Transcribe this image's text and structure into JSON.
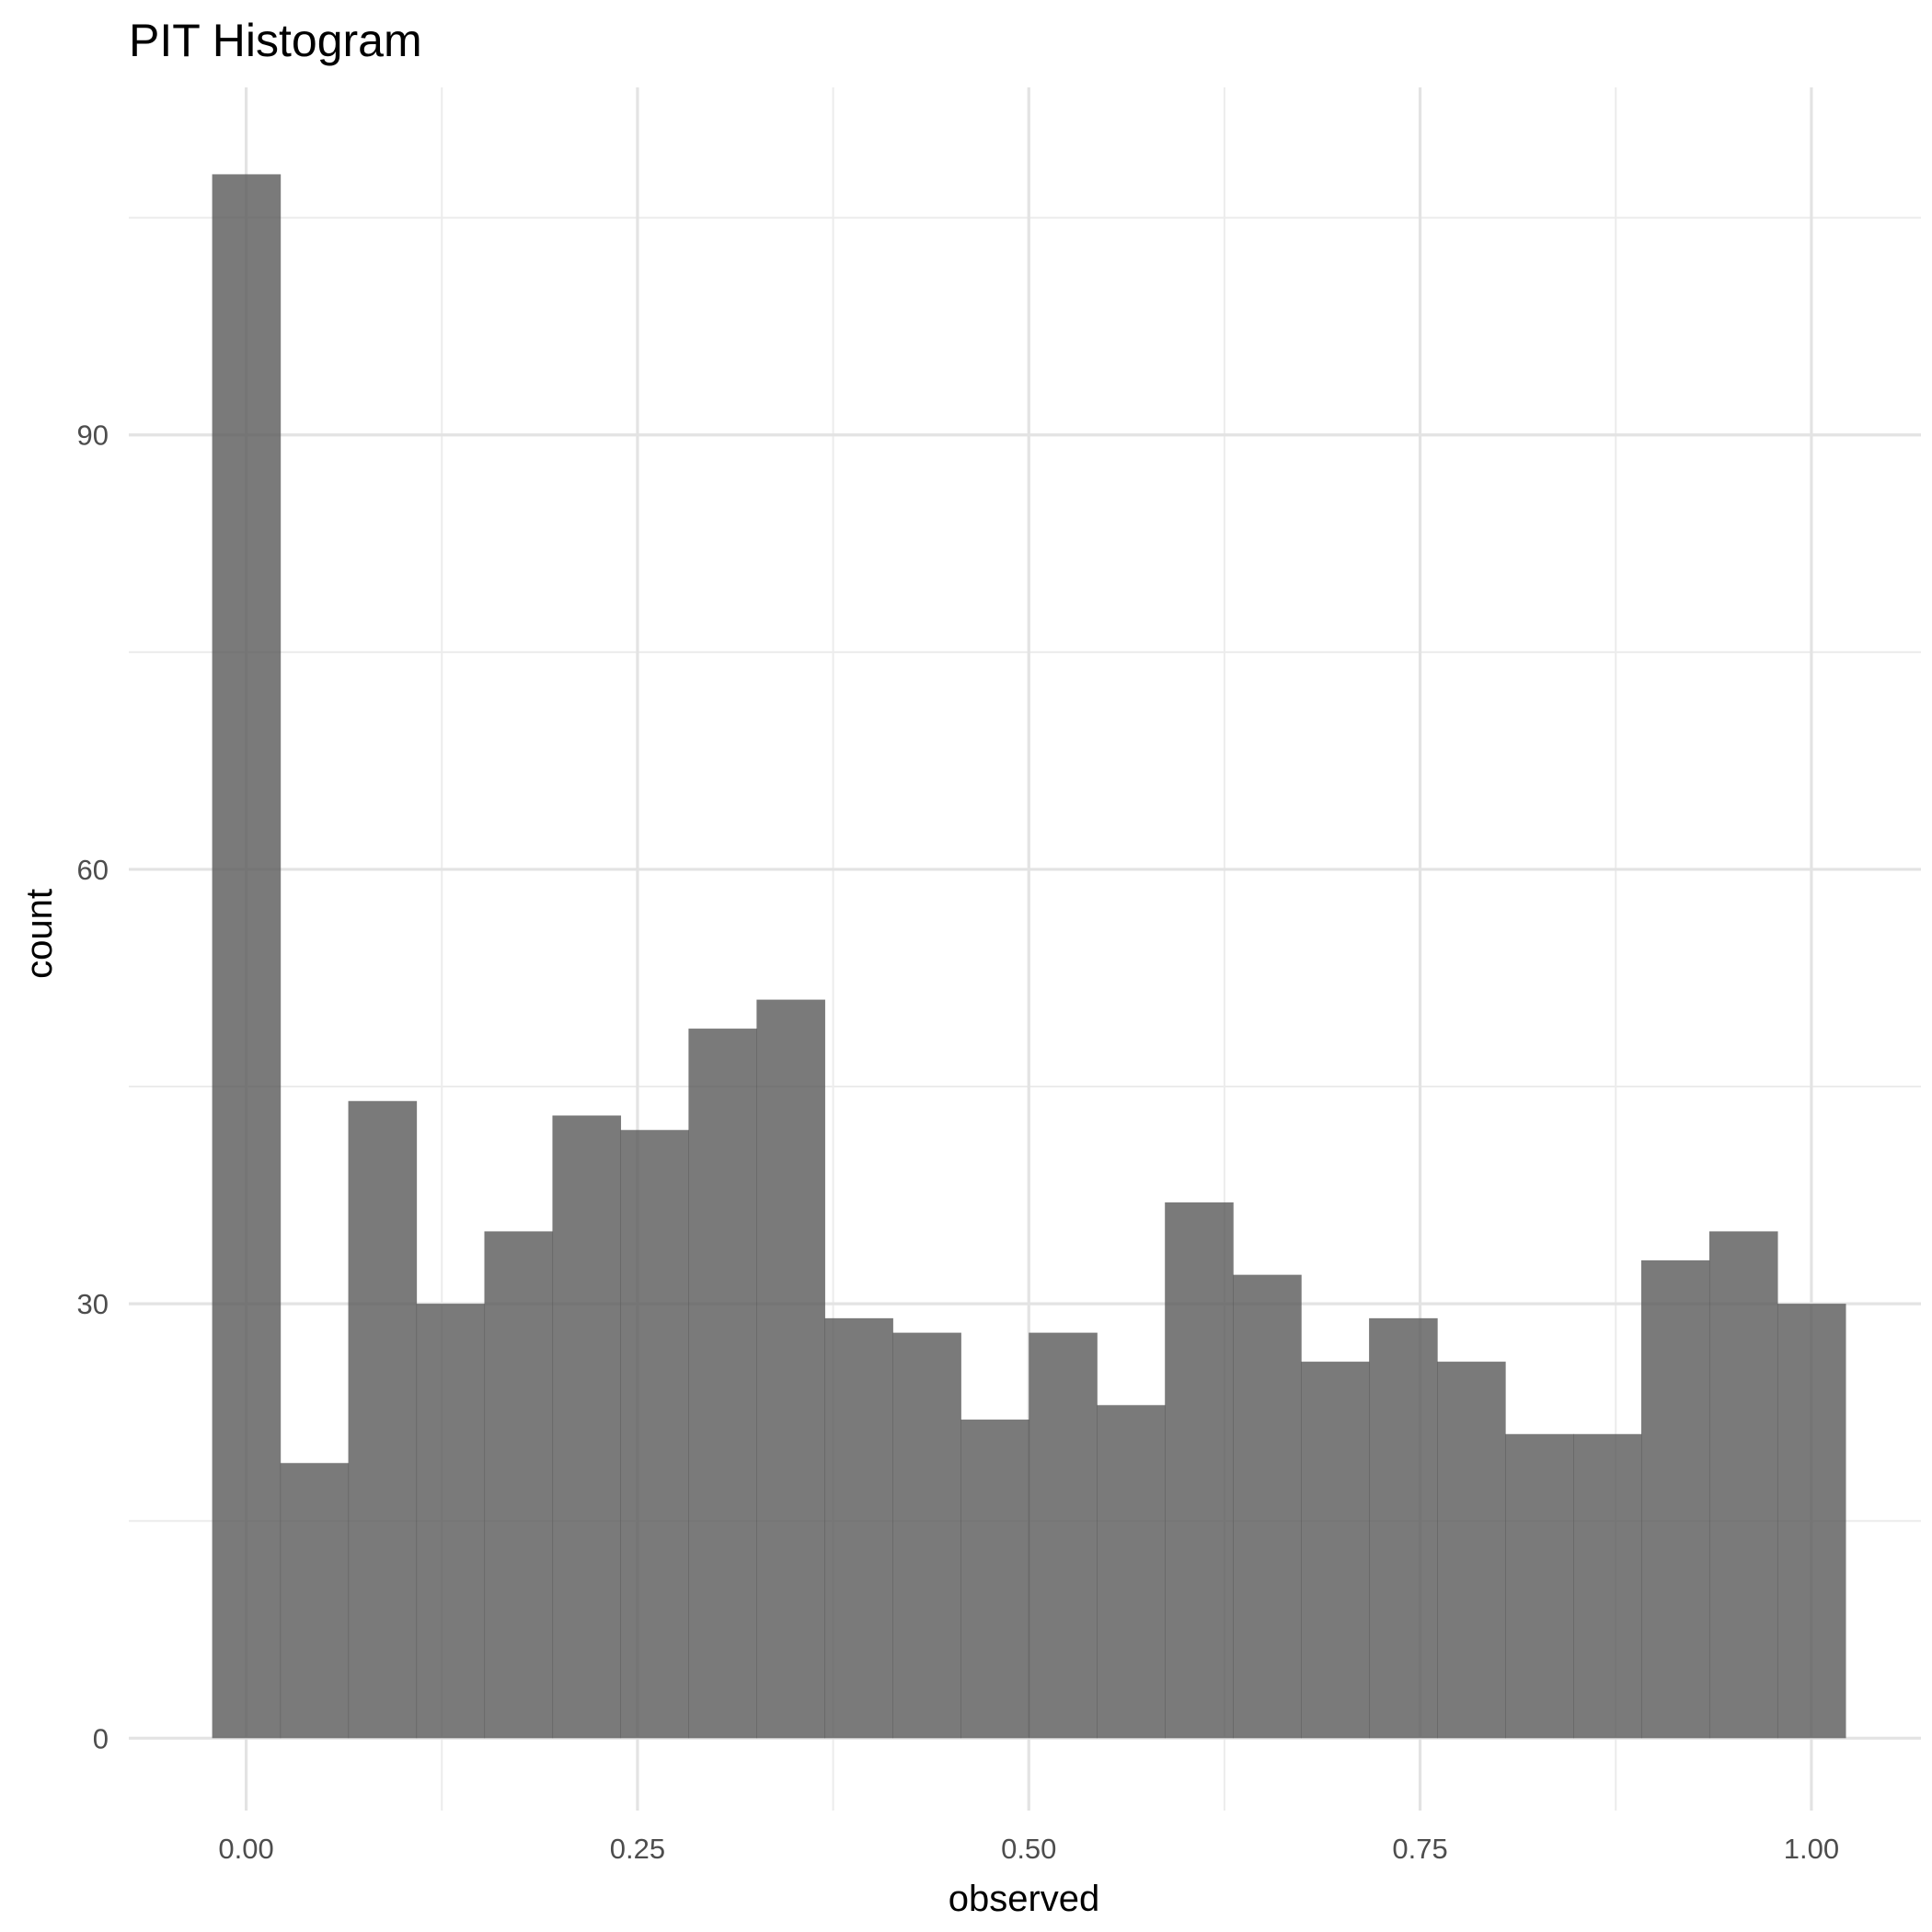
{
  "chart_data": {
    "type": "bar",
    "title": "PIT Histogram",
    "xlabel": "observed",
    "ylabel": "count",
    "x_ticks": [
      "0.00",
      "0.25",
      "0.50",
      "0.75",
      "1.00"
    ],
    "y_ticks": [
      "0",
      "30",
      "60",
      "90"
    ],
    "xlim": [
      -0.075,
      1.07
    ],
    "ylim": [
      -5,
      114
    ],
    "grid": true,
    "bar_color": "#595959",
    "bin_width": 0.04348,
    "bin_centers": [
      0.0,
      0.04348,
      0.08696,
      0.13043,
      0.17391,
      0.21739,
      0.26087,
      0.30435,
      0.34783,
      0.3913,
      0.43478,
      0.47826,
      0.52174,
      0.56522,
      0.6087,
      0.65217,
      0.69565,
      0.73913,
      0.78261,
      0.82609,
      0.86957,
      0.91304,
      0.95652,
      1.0
    ],
    "values": [
      108,
      19,
      44,
      30,
      35,
      43,
      42,
      49,
      51,
      29,
      28,
      22,
      28,
      23,
      37,
      32,
      26,
      29,
      26,
      21,
      21,
      33,
      35,
      30
    ]
  }
}
